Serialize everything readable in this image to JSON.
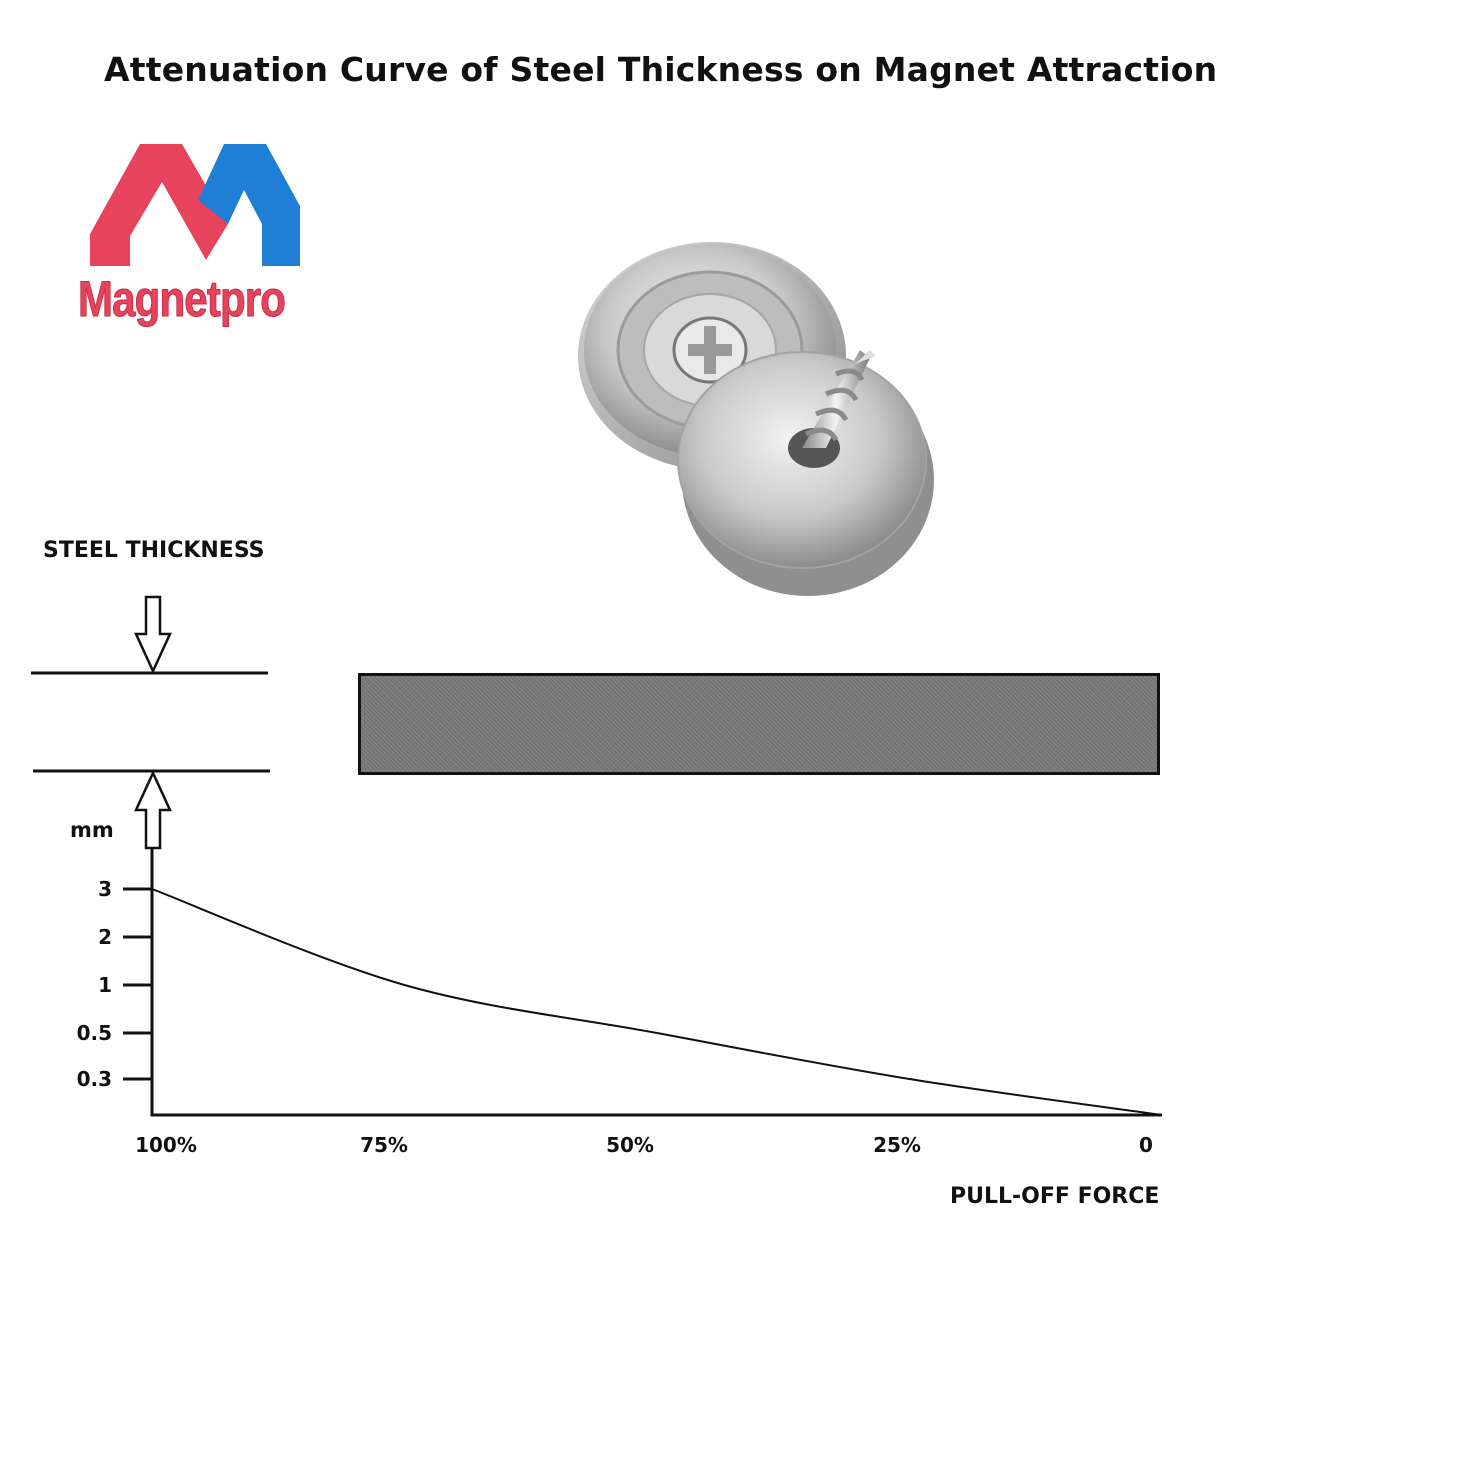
{
  "title": "Attenuation Curve of Steel Thickness on Magnet Attraction",
  "logo": {
    "text": "Magnetpro",
    "colors": {
      "red": "#e8435c",
      "blue": "#1f7fd6"
    }
  },
  "image": {
    "subject": "countersunk-cup-magnet-with-screw-icon"
  },
  "steel_label": "STEEL THICKNESS",
  "chart_data": {
    "type": "line",
    "title": "",
    "ylabel": "mm",
    "xlabel": "PULL-OFF FORCE",
    "x_tick_labels": [
      "100%",
      "75%",
      "50%",
      "25%",
      "0"
    ],
    "x_tick_values": [
      100,
      75,
      50,
      25,
      0
    ],
    "y_tick_labels": [
      "3",
      "2",
      "1",
      "0.5",
      "0.3"
    ],
    "y_scale": "categorical",
    "series": [
      {
        "points": [
          {
            "x": 100,
            "y": "3"
          },
          {
            "x": 75,
            "y": "1"
          },
          {
            "x": 50,
            "y": "0.5"
          },
          {
            "x": 25,
            "y": "0.3"
          },
          {
            "x": 0,
            "y": 0
          }
        ]
      }
    ]
  }
}
